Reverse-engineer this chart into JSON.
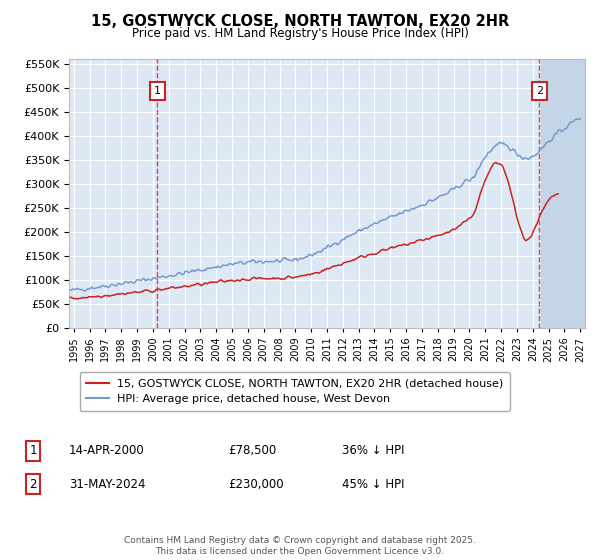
{
  "title": "15, GOSTWYCK CLOSE, NORTH TAWTON, EX20 2HR",
  "subtitle": "Price paid vs. HM Land Registry's House Price Index (HPI)",
  "legend_line1": "15, GOSTWYCK CLOSE, NORTH TAWTON, EX20 2HR (detached house)",
  "legend_line2": "HPI: Average price, detached house, West Devon",
  "annotation1_label": "1",
  "annotation1_date": "14-APR-2000",
  "annotation1_price": "£78,500",
  "annotation1_hpi": "36% ↓ HPI",
  "annotation2_label": "2",
  "annotation2_date": "31-MAY-2024",
  "annotation2_price": "£230,000",
  "annotation2_hpi": "45% ↓ HPI",
  "footer": "Contains HM Land Registry data © Crown copyright and database right 2025.\nThis data is licensed under the Open Government Licence v3.0.",
  "ylim": [
    0,
    560000
  ],
  "xlim_start": 1994.7,
  "xlim_end": 2027.3,
  "hpi_color": "#7799cc",
  "price_color": "#cc2222",
  "vline_color": "#cc3333",
  "annotation_box_edgecolor": "#cc2222",
  "plot_bg_color": "#dde8f5",
  "hatch_color": "#c5d5e8",
  "grid_color": "#ffffff",
  "sale1_x": 2000.29,
  "sale1_y": 78500,
  "sale2_x": 2024.42,
  "sale2_y": 230000
}
